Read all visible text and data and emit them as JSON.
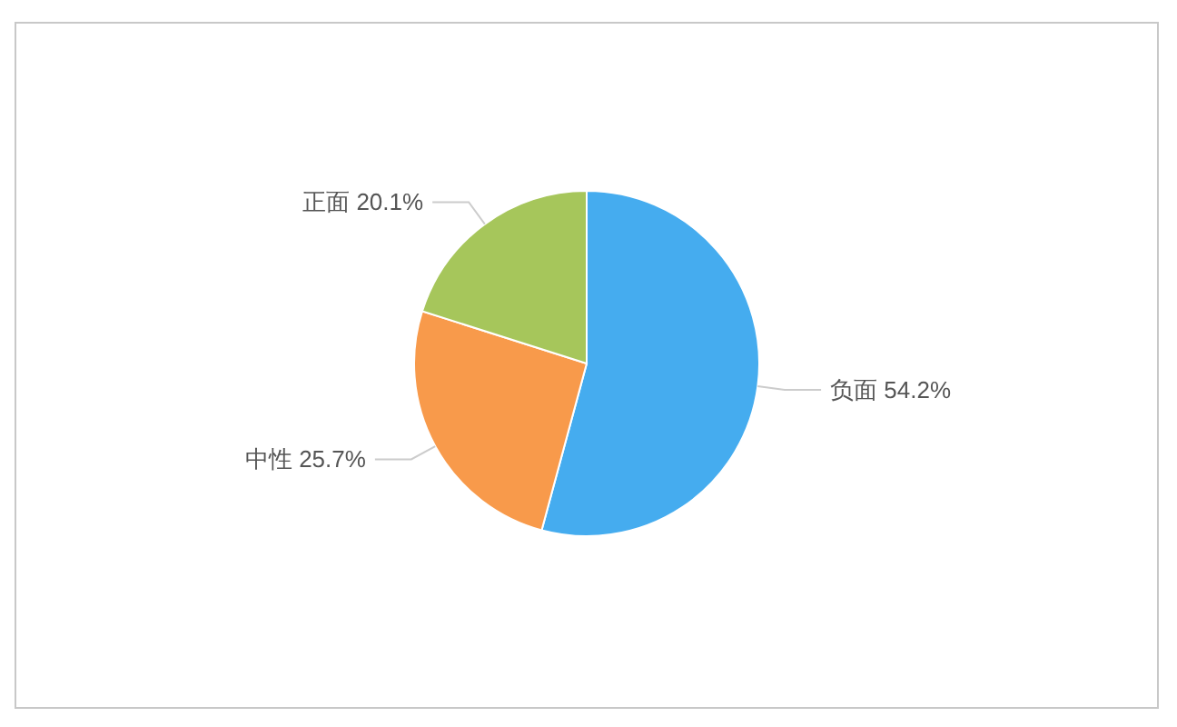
{
  "chart_data": {
    "type": "pie",
    "categories": [
      "负面",
      "中性",
      "正面"
    ],
    "values": [
      54.2,
      25.7,
      20.1
    ],
    "value_labels": [
      "54.2%",
      "25.7%",
      "20.1%"
    ],
    "colors": [
      "#45acef",
      "#f89a4b",
      "#a6c65b"
    ]
  }
}
